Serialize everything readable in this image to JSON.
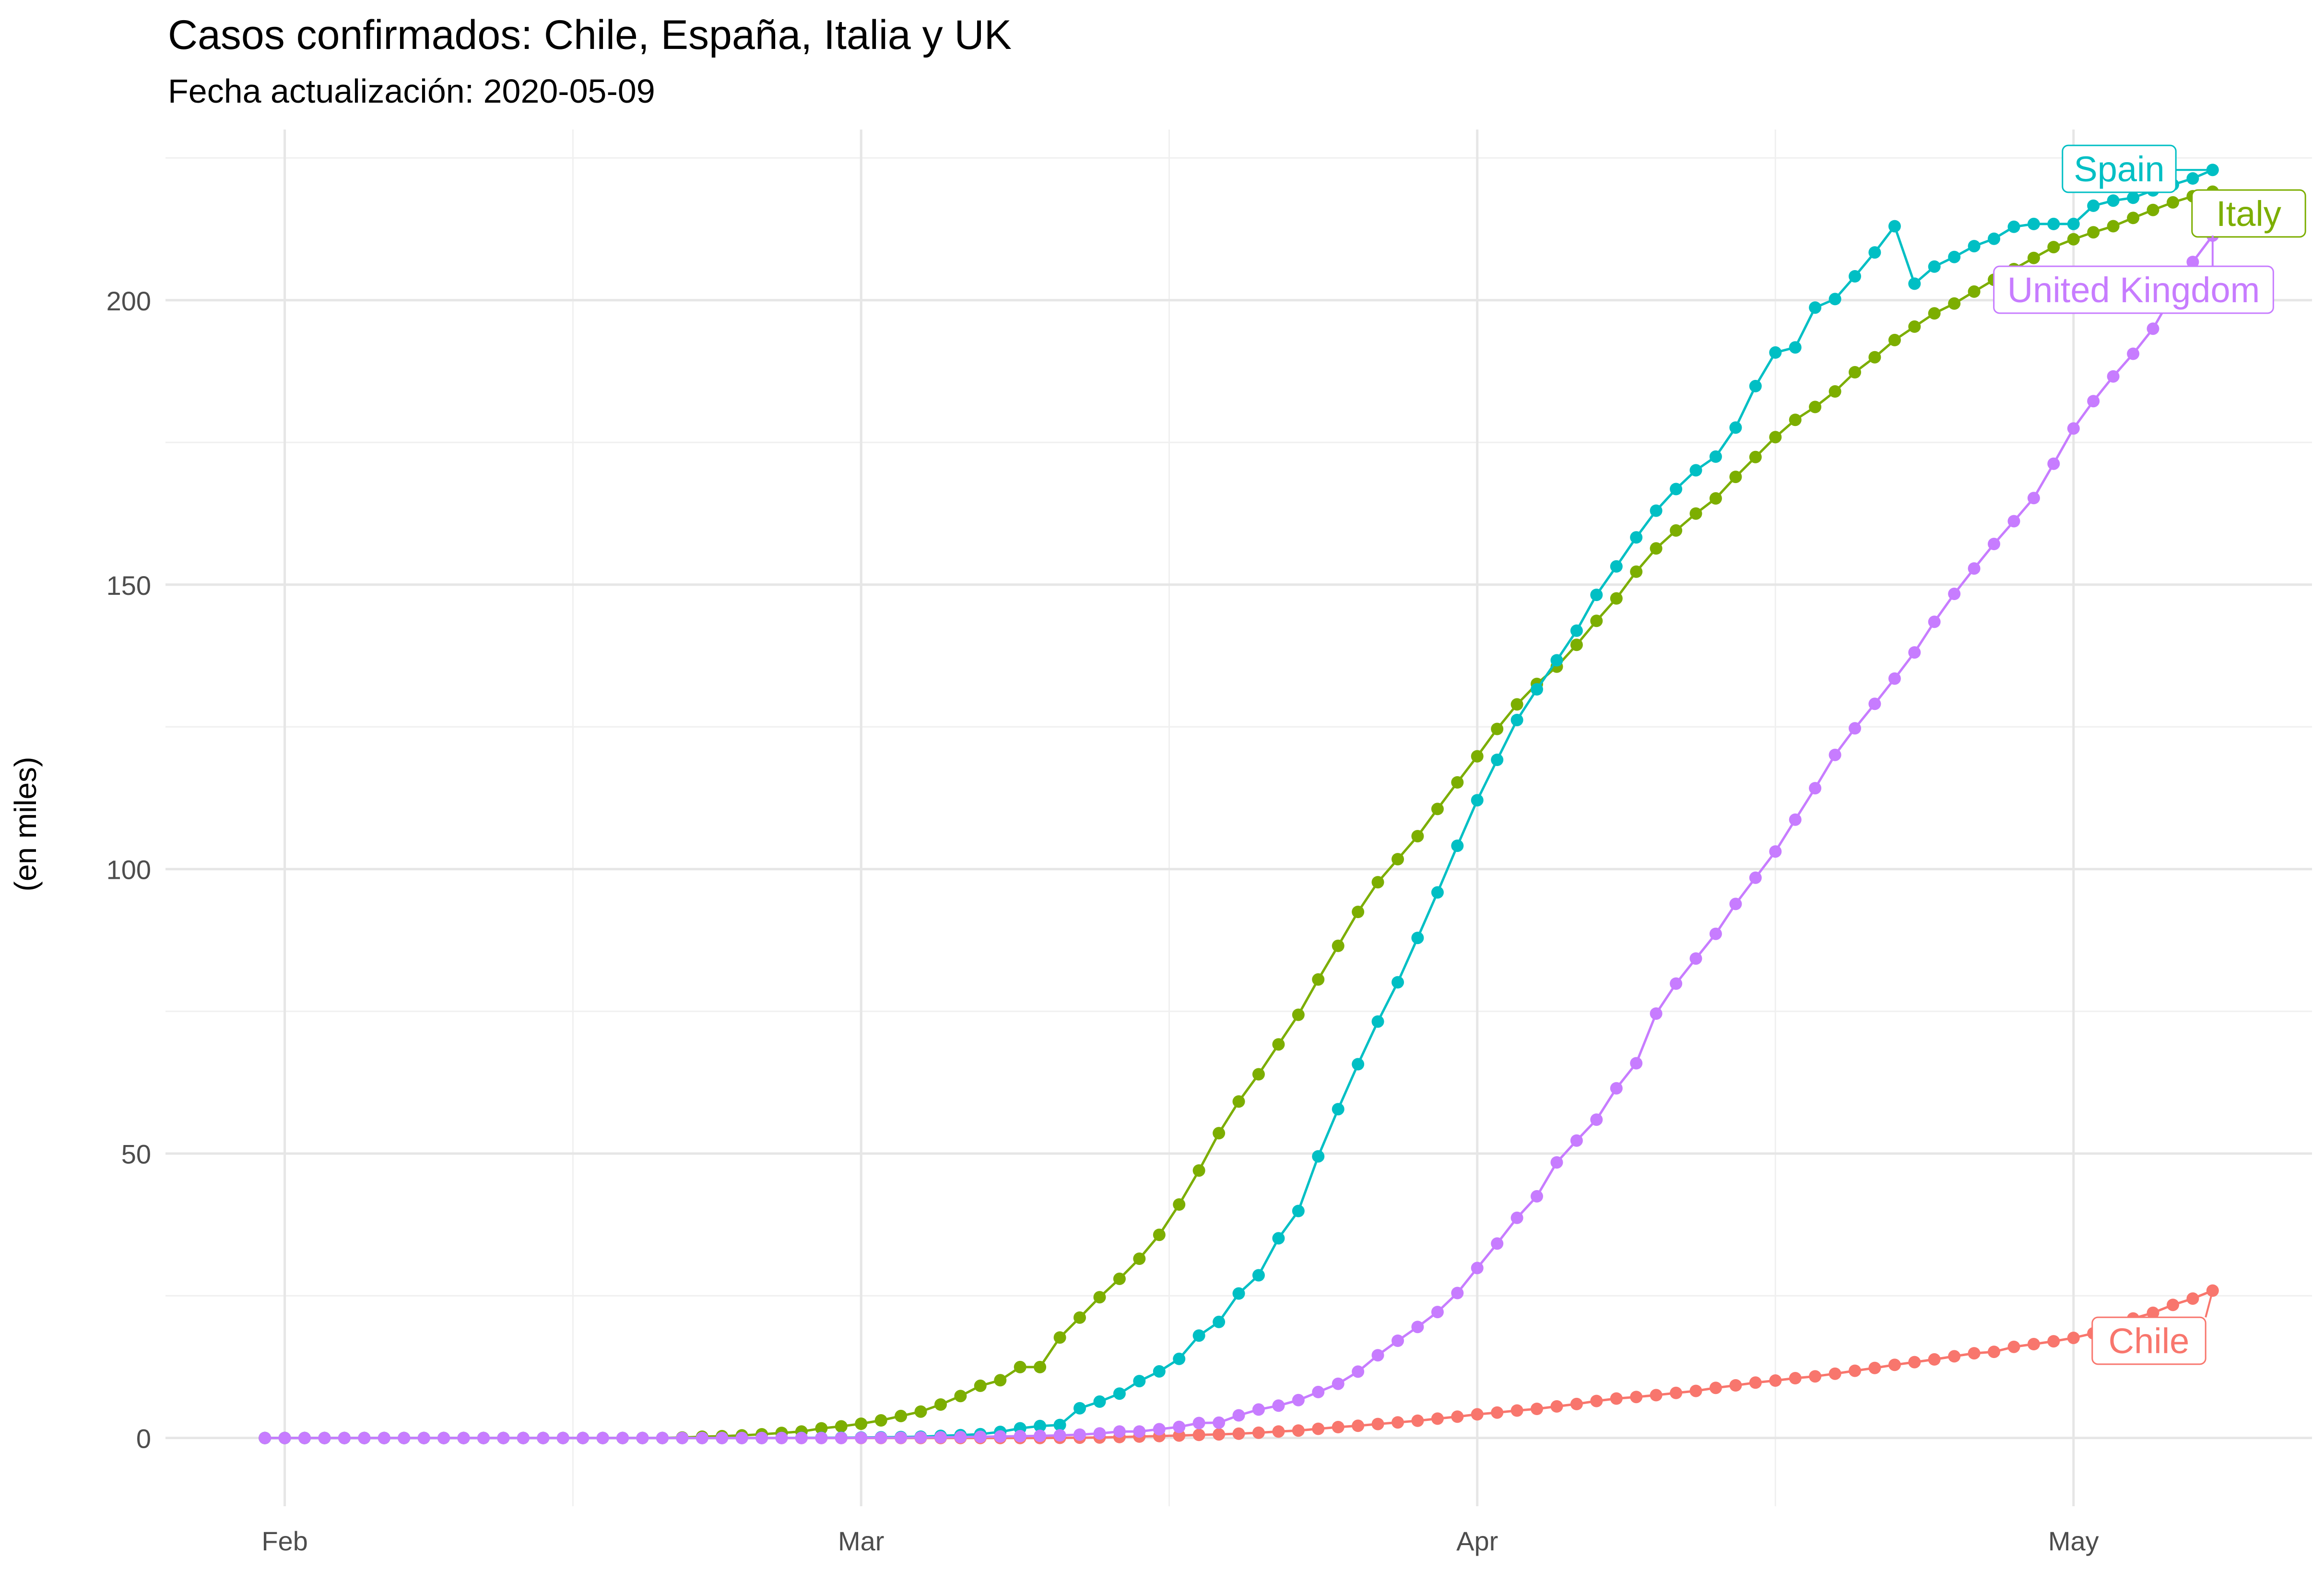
{
  "chart_data": {
    "type": "line",
    "title": "Casos confirmados: Chile, España, Italia y UK",
    "subtitle": "Fecha actualización: 2020-05-09",
    "xlabel": "",
    "ylabel": "(en miles)",
    "x_start": "2020-01-31",
    "x_end": "2020-05-09",
    "xlim": [
      "2020-01-26",
      "2020-05-13"
    ],
    "ylim": [
      -12,
      230
    ],
    "x_ticks": [
      {
        "date": "2020-02-01",
        "label": "Feb"
      },
      {
        "date": "2020-03-01",
        "label": "Mar"
      },
      {
        "date": "2020-04-01",
        "label": "Apr"
      },
      {
        "date": "2020-05-01",
        "label": "May"
      }
    ],
    "y_ticks": [
      0,
      50,
      100,
      150,
      200
    ],
    "grid": true,
    "legend": "direct labels",
    "series": [
      {
        "name": "Chile",
        "color": "#F8766D",
        "values": [
          0,
          0,
          0,
          0,
          0,
          0,
          0,
          0,
          0,
          0,
          0,
          0,
          0,
          0,
          0,
          0,
          0,
          0,
          0,
          0,
          0,
          0,
          0,
          0,
          0,
          0,
          0,
          0,
          0,
          0,
          0,
          0,
          0,
          0,
          0,
          0,
          0,
          0,
          0,
          0,
          0.02,
          0.05,
          0.08,
          0.16,
          0.24,
          0.34,
          0.43,
          0.54,
          0.63,
          0.75,
          0.92,
          1.14,
          1.31,
          1.61,
          1.91,
          2.14,
          2.45,
          2.74,
          3.03,
          3.4,
          3.74,
          4.16,
          4.47,
          4.82,
          5.12,
          5.55,
          5.97,
          6.5,
          6.93,
          7.21,
          7.53,
          7.92,
          8.27,
          8.81,
          9.25,
          9.73,
          10.09,
          10.51,
          10.83,
          11.3,
          11.81,
          12.31,
          12.86,
          13.33,
          13.81,
          14.36,
          14.89,
          15.14,
          16.02,
          16.5,
          17.0,
          17.6,
          18.4,
          19.7,
          21.0,
          22.0,
          23.4,
          24.5,
          25.9
        ]
      },
      {
        "name": "Italy",
        "color": "#7CAE00",
        "values": [
          0,
          0,
          0,
          0,
          0,
          0,
          0,
          0,
          0,
          0,
          0,
          0,
          0,
          0,
          0,
          0,
          0,
          0,
          0,
          0,
          0,
          0.08,
          0.23,
          0.32,
          0.45,
          0.65,
          0.89,
          1.13,
          1.69,
          2.04,
          2.5,
          3.09,
          3.86,
          4.64,
          5.88,
          7.38,
          9.17,
          10.15,
          12.46,
          12.46,
          17.66,
          21.16,
          24.75,
          27.98,
          31.51,
          35.71,
          41.04,
          47.02,
          53.58,
          59.14,
          63.93,
          69.18,
          74.39,
          80.59,
          86.5,
          92.47,
          97.69,
          101.74,
          105.79,
          110.57,
          115.24,
          119.83,
          124.63,
          128.95,
          132.55,
          135.59,
          139.42,
          143.63,
          147.58,
          152.27,
          156.36,
          159.52,
          162.49,
          165.16,
          168.94,
          172.43,
          175.93,
          178.97,
          181.23,
          183.96,
          187.33,
          189.97,
          192.99,
          195.35,
          197.68,
          199.41,
          201.51,
          203.59,
          205.46,
          207.43,
          209.33,
          210.72,
          211.94,
          213.01,
          214.46,
          215.86,
          217.19,
          218.27,
          219.07
        ]
      },
      {
        "name": "Spain",
        "color": "#00BFC4",
        "values": [
          0,
          0,
          0,
          0,
          0,
          0,
          0,
          0,
          0,
          0,
          0,
          0,
          0,
          0,
          0,
          0,
          0,
          0,
          0,
          0,
          0,
          0,
          0,
          0,
          0,
          0,
          0.01,
          0.02,
          0.03,
          0.05,
          0.08,
          0.12,
          0.17,
          0.23,
          0.37,
          0.5,
          0.67,
          1.07,
          1.7,
          2.1,
          2.28,
          5.23,
          6.39,
          7.8,
          10.0,
          11.7,
          13.9,
          18.0,
          20.4,
          25.4,
          28.6,
          35.1,
          39.9,
          49.5,
          57.8,
          65.7,
          73.2,
          80.1,
          87.9,
          95.9,
          104.1,
          112.1,
          119.2,
          126.2,
          131.6,
          136.7,
          141.9,
          148.2,
          153.2,
          158.3,
          163.0,
          166.8,
          170.1,
          172.5,
          177.6,
          184.9,
          190.8,
          191.7,
          198.7,
          200.2,
          204.2,
          208.4,
          213.0,
          202.9,
          205.9,
          207.6,
          209.5,
          210.8,
          212.9,
          213.4,
          213.4,
          213.4,
          216.6,
          217.5,
          218.0,
          219.3,
          220.3,
          221.4,
          222.9
        ]
      },
      {
        "name": "United Kingdom",
        "color": "#C77CFF",
        "values": [
          0,
          0,
          0,
          0,
          0,
          0,
          0,
          0,
          0,
          0,
          0,
          0,
          0,
          0,
          0,
          0,
          0,
          0,
          0,
          0,
          0,
          0,
          0,
          0,
          0,
          0,
          0,
          0,
          0,
          0,
          0.02,
          0.04,
          0.05,
          0.09,
          0.12,
          0.16,
          0.21,
          0.27,
          0.32,
          0.38,
          0.46,
          0.59,
          0.8,
          1.14,
          1.14,
          1.54,
          1.95,
          2.63,
          2.69,
          3.98,
          5.0,
          5.68,
          6.65,
          8.08,
          9.53,
          11.66,
          14.54,
          17.09,
          19.52,
          22.14,
          25.48,
          29.87,
          34.17,
          38.69,
          42.48,
          48.44,
          52.28,
          55.95,
          61.47,
          65.87,
          74.6,
          79.87,
          84.28,
          88.62,
          93.87,
          98.48,
          103.09,
          108.69,
          114.22,
          120.07,
          124.74,
          129.04,
          133.49,
          138.08,
          143.46,
          148.38,
          152.84,
          157.15,
          161.15,
          165.22,
          171.25,
          177.45,
          182.26,
          186.6,
          190.58,
          194.99,
          201.1,
          206.72,
          211.36
        ]
      }
    ],
    "annotations": [
      {
        "series": "Spain",
        "text": "Spain"
      },
      {
        "series": "Italy",
        "text": "Italy"
      },
      {
        "series": "United Kingdom",
        "text": "United Kingdom"
      },
      {
        "series": "Chile",
        "text": "Chile"
      }
    ]
  }
}
